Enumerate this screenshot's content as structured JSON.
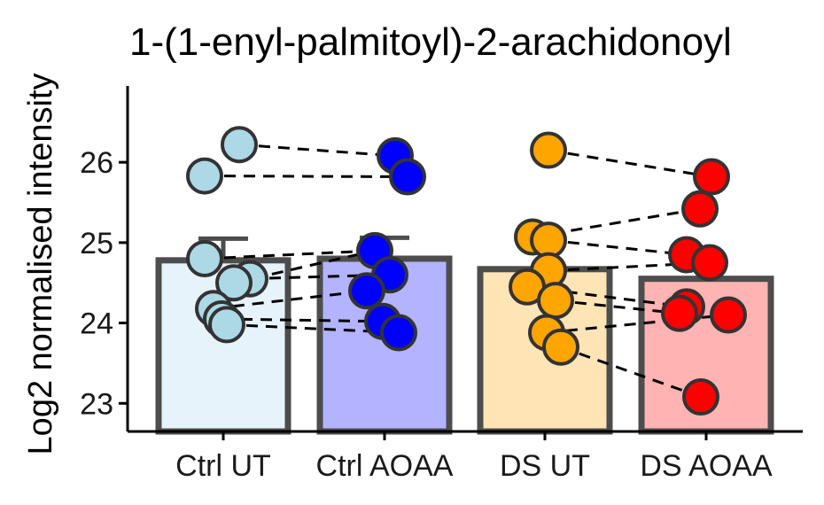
{
  "chart_data": {
    "type": "bar",
    "title": "1-(1-enyl-palmitoyl)-2-arachidonoyl",
    "xlabel": "",
    "ylabel": "Log2 normalised intensity",
    "ylim": [
      22.65,
      26.95
    ],
    "yticks": [
      23,
      24,
      25,
      26
    ],
    "grid": false,
    "legend": "none",
    "categories": [
      "Ctrl UT",
      "Ctrl AOAA",
      "DS UT",
      "DS AOAA"
    ],
    "means": [
      24.78,
      24.8,
      24.67,
      24.55
    ],
    "error_upper": [
      25.05,
      25.06,
      null,
      null
    ],
    "bar_colors": [
      "#e6f3fa",
      "#b3b3ff",
      "#ffe4b5",
      "#ffb3b3"
    ],
    "point_colors": [
      "#add8e6",
      "#0000ff",
      "#ffa500",
      "#ff0000"
    ],
    "points": [
      [
        26.22,
        25.83,
        24.8,
        24.55,
        24.5,
        24.18,
        24.05,
        23.98
      ],
      [
        26.08,
        25.82,
        24.9,
        24.6,
        24.4,
        24.02,
        23.88
      ],
      [
        26.15,
        25.07,
        25.03,
        24.65,
        24.45,
        24.28,
        23.88,
        23.7
      ],
      [
        25.82,
        25.42,
        24.85,
        24.75,
        24.2,
        24.12,
        24.1,
        23.08
      ]
    ],
    "pairs": [
      {
        "from": [
          0,
          0
        ],
        "to": [
          1,
          0
        ]
      },
      {
        "from": [
          0,
          1
        ],
        "to": [
          1,
          1
        ]
      },
      {
        "from": [
          0,
          2
        ],
        "to": [
          1,
          2
        ]
      },
      {
        "from": [
          0,
          3
        ],
        "to": [
          1,
          3
        ]
      },
      {
        "from": [
          0,
          4
        ],
        "to": [
          1,
          2
        ]
      },
      {
        "from": [
          0,
          5
        ],
        "to": [
          1,
          4
        ]
      },
      {
        "from": [
          0,
          6
        ],
        "to": [
          1,
          5
        ]
      },
      {
        "from": [
          0,
          7
        ],
        "to": [
          1,
          6
        ]
      },
      {
        "from": [
          2,
          0
        ],
        "to": [
          3,
          0
        ]
      },
      {
        "from": [
          2,
          1
        ],
        "to": [
          3,
          1
        ]
      },
      {
        "from": [
          2,
          2
        ],
        "to": [
          3,
          2
        ]
      },
      {
        "from": [
          2,
          3
        ],
        "to": [
          3,
          3
        ]
      },
      {
        "from": [
          2,
          4
        ],
        "to": [
          3,
          4
        ]
      },
      {
        "from": [
          2,
          5
        ],
        "to": [
          3,
          5
        ]
      },
      {
        "from": [
          2,
          6
        ],
        "to": [
          3,
          6
        ]
      },
      {
        "from": [
          2,
          7
        ],
        "to": [
          3,
          7
        ]
      }
    ]
  }
}
